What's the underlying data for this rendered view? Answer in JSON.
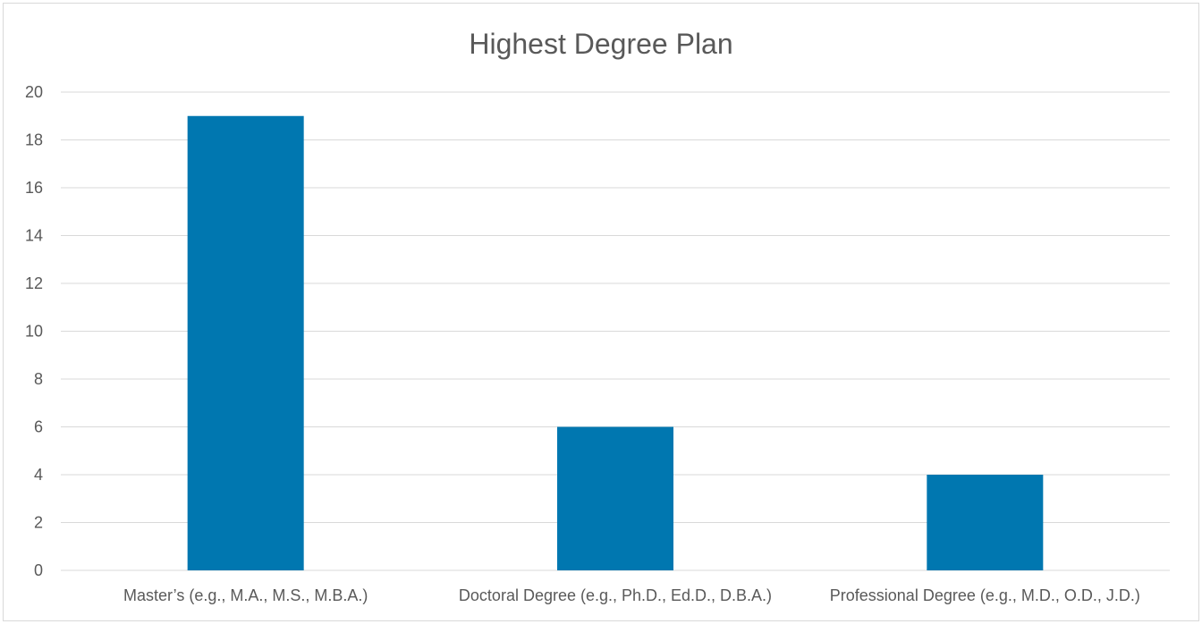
{
  "chart_data": {
    "type": "bar",
    "title": "Highest Degree Plan",
    "xlabel": "",
    "ylabel": "",
    "categories": [
      "Master’s (e.g., M.A., M.S., M.B.A.)",
      "Doctoral Degree (e.g., Ph.D., Ed.D., D.B.A.)",
      "Professional Degree (e.g., M.D., O.D., J.D.)"
    ],
    "values": [
      19,
      6,
      4
    ],
    "ylim": [
      0,
      20
    ],
    "yticks": [
      "0",
      "2",
      "4",
      "6",
      "8",
      "10",
      "12",
      "14",
      "16",
      "18",
      "20"
    ],
    "grid": true,
    "legend": "none",
    "colors": {
      "bar": "#0077b0",
      "grid": "#d9d9d9",
      "text": "#595959",
      "border": "#d9d9d9"
    }
  }
}
